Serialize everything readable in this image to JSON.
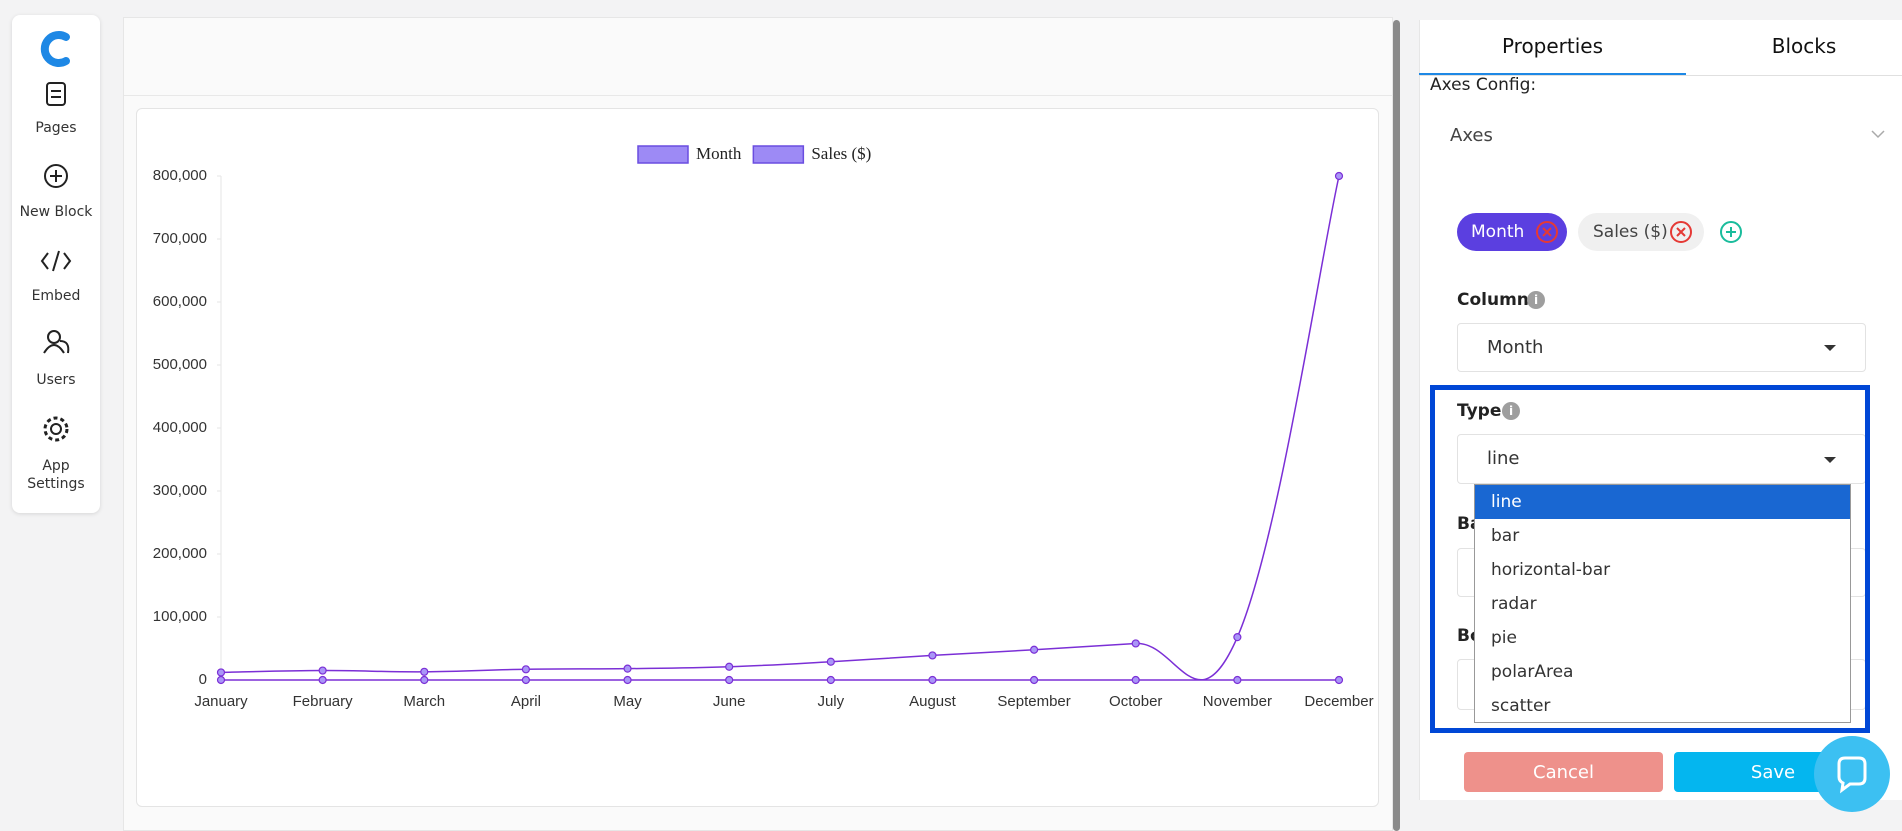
{
  "sidebar": {
    "items": [
      {
        "label": "Pages"
      },
      {
        "label": "New Block"
      },
      {
        "label": "Embed"
      },
      {
        "label": "Users"
      },
      {
        "label": "App Settings"
      }
    ]
  },
  "chart_data": {
    "type": "line",
    "categories": [
      "January",
      "February",
      "March",
      "April",
      "May",
      "June",
      "July",
      "August",
      "September",
      "October",
      "November",
      "December"
    ],
    "series": [
      {
        "name": "Month",
        "color": "#7b2fd6",
        "values": [
          0,
          0,
          0,
          0,
          0,
          0,
          0,
          0,
          0,
          0,
          0,
          0
        ]
      },
      {
        "name": "Sales ($)",
        "color": "#7b2fd6",
        "values": [
          12000,
          15000,
          13000,
          17000,
          18000,
          21000,
          29000,
          39000,
          48000,
          58000,
          68000,
          800000
        ]
      }
    ],
    "ylim": [
      0,
      800000
    ],
    "yticks": [
      0,
      {
        "value": 100000,
        "label": "100,000"
      },
      {
        "value": 200000,
        "label": "200,000"
      },
      {
        "value": 300000,
        "label": "300,000"
      },
      {
        "value": 400000,
        "label": "400,000"
      },
      {
        "value": 500000,
        "label": "500,000"
      },
      {
        "value": 600000,
        "label": "600,000"
      },
      {
        "value": 700000,
        "label": "700,000"
      },
      {
        "value": 800000,
        "label": "800,000"
      }
    ],
    "grid": false,
    "legend": "top"
  },
  "panel": {
    "tabs": [
      "Properties",
      "Blocks"
    ],
    "section": "Axes Config:",
    "axes_label": "Axes",
    "axes_chips": [
      "Month",
      "Sales ($)"
    ],
    "column": {
      "label": "Column",
      "value": "Month"
    },
    "type": {
      "label": "Type",
      "value": "line",
      "options": [
        "line",
        "bar",
        "horizontal-bar",
        "radar",
        "pie",
        "polarArea",
        "scatter"
      ]
    },
    "hidden_labels": [
      "Ba",
      "Bo"
    ],
    "buttons": {
      "cancel": "Cancel",
      "save": "Save"
    }
  }
}
